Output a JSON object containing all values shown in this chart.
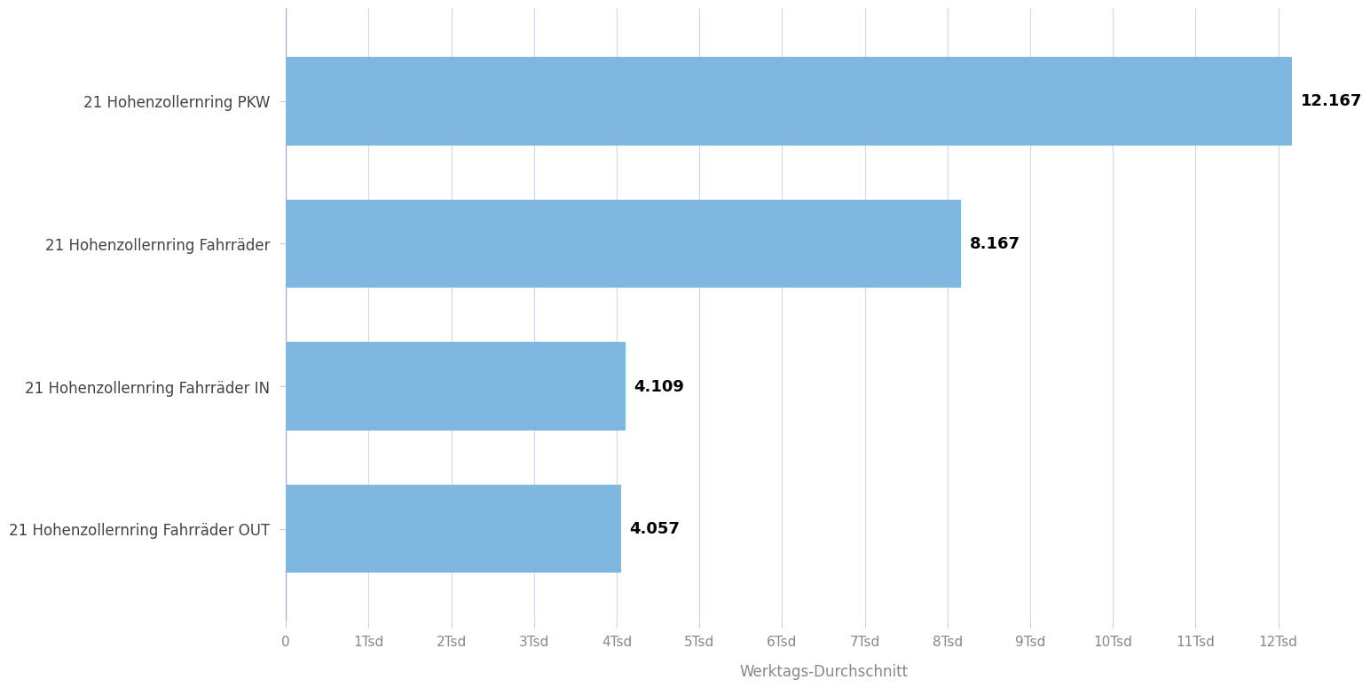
{
  "categories": [
    "21 Hohenzollernring PKW",
    "21 Hohenzollernring Fahrräder",
    "21 Hohenzollernring Fahrräder IN",
    "21 Hohenzollernring Fahrräder OUT"
  ],
  "values": [
    12167,
    8167,
    4109,
    4057
  ],
  "labels": [
    "12.167",
    "8.167",
    "4.109",
    "4.057"
  ],
  "bar_color": "#7EB8E0",
  "xlabel": "Werktags-Durchschnitt",
  "xlim": [
    0,
    13000
  ],
  "xticks": [
    0,
    1000,
    2000,
    3000,
    4000,
    5000,
    6000,
    7000,
    8000,
    9000,
    10000,
    11000,
    12000
  ],
  "xtick_labels": [
    "0",
    "1Tsd",
    "2Tsd",
    "3Tsd",
    "4Tsd",
    "5Tsd",
    "6Tsd",
    "7Tsd",
    "8Tsd",
    "9Tsd",
    "10Tsd",
    "11Tsd",
    "12Tsd"
  ],
  "background_color": "#ffffff",
  "grid_color": "#cdd8e8",
  "label_fontsize": 13,
  "bar_height": 0.62,
  "figsize": [
    15.94,
    8.97
  ]
}
